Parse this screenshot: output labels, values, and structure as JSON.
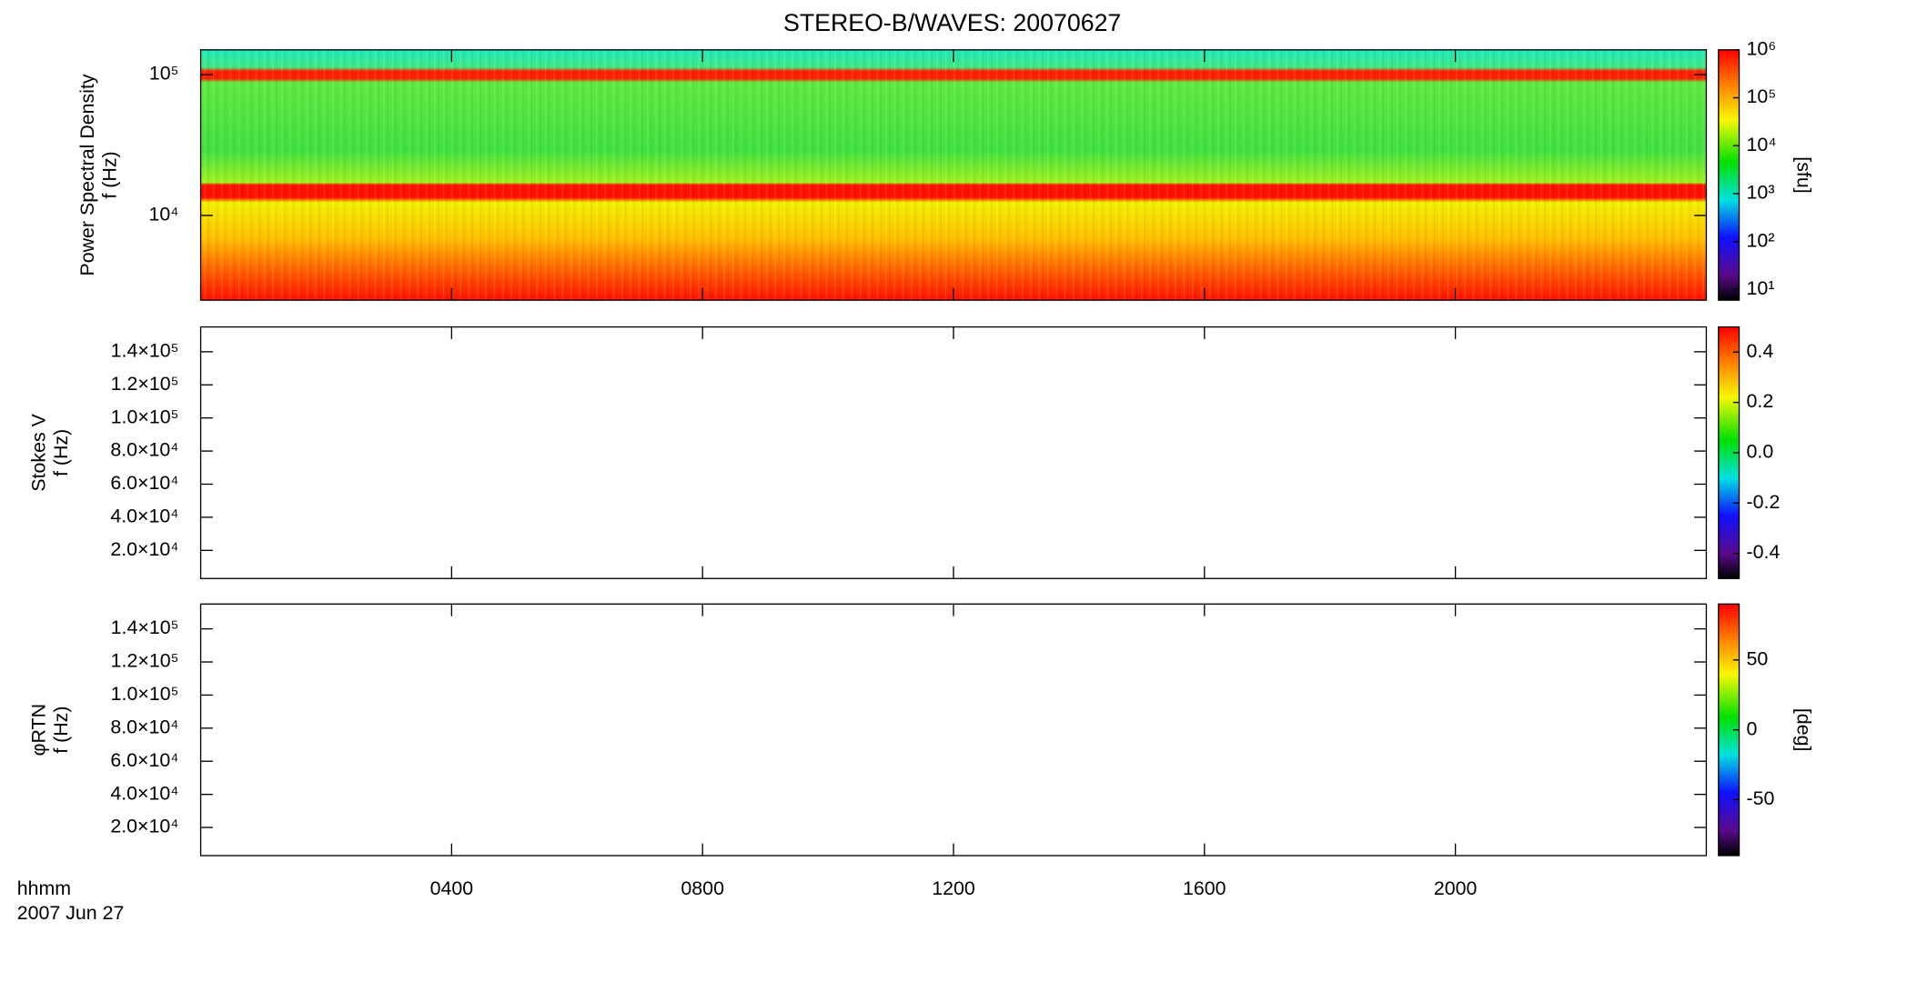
{
  "chart_data": [
    {
      "type": "spectrogram",
      "title": "STEREO-B/WAVES: 20070627",
      "y_label": [
        "Power Spectral Density",
        "f (Hz)"
      ],
      "log_y": true,
      "ylim": [
        2500,
        150000
      ],
      "yticks": [
        {
          "value": 10000,
          "label": "10⁴"
        },
        {
          "value": 100000,
          "label": "10⁵"
        }
      ],
      "xlim": [
        0,
        24
      ],
      "xticks": [
        {
          "value": 4,
          "label": "0400"
        },
        {
          "value": 8,
          "label": "0800"
        },
        {
          "value": 12,
          "label": "1200"
        },
        {
          "value": 16,
          "label": "1600"
        },
        {
          "value": 20,
          "label": "2000"
        }
      ],
      "colorbar": {
        "label": "[sfu]",
        "log": true,
        "lim": [
          6,
          1000000
        ],
        "ticks": [
          {
            "value": 10,
            "label": "10¹"
          },
          {
            "value": 100,
            "label": "10²"
          },
          {
            "value": 1000,
            "label": "10³"
          },
          {
            "value": 10000,
            "label": "10⁴"
          },
          {
            "value": 100000,
            "label": "10⁵"
          },
          {
            "value": 1000000,
            "label": "10⁶"
          }
        ]
      }
    },
    {
      "type": "spectrogram",
      "y_label": [
        "Stokes V",
        "f (Hz)"
      ],
      "log_y": false,
      "ylim": [
        3000,
        155000
      ],
      "yticks": [
        {
          "value": 20000,
          "label": "2.0×10⁴"
        },
        {
          "value": 40000,
          "label": "4.0×10⁴"
        },
        {
          "value": 60000,
          "label": "6.0×10⁴"
        },
        {
          "value": 80000,
          "label": "8.0×10⁴"
        },
        {
          "value": 100000,
          "label": "1.0×10⁵"
        },
        {
          "value": 120000,
          "label": "1.2×10⁵"
        },
        {
          "value": 140000,
          "label": "1.4×10⁵"
        }
      ],
      "xlim": [
        0,
        24
      ],
      "colorbar": {
        "log": false,
        "lim": [
          -0.5,
          0.5
        ],
        "ticks": [
          -0.4,
          -0.2,
          {
            "value": 0,
            "label": "0.0"
          },
          0.2,
          0.4
        ]
      }
    },
    {
      "type": "spectrogram",
      "y_label": [
        "φRTN",
        "f (Hz)"
      ],
      "log_y": false,
      "ylim": [
        3000,
        155000
      ],
      "yticks": [
        {
          "value": 20000,
          "label": "2.0×10⁴"
        },
        {
          "value": 40000,
          "label": "4.0×10⁴"
        },
        {
          "value": 60000,
          "label": "6.0×10⁴"
        },
        {
          "value": 80000,
          "label": "8.0×10⁴"
        },
        {
          "value": 100000,
          "label": "1.0×10⁵"
        },
        {
          "value": 120000,
          "label": "1.2×10⁵"
        },
        {
          "value": 140000,
          "label": "1.4×10⁵"
        }
      ],
      "xlim": [
        0,
        24
      ],
      "x_label": [
        "hhmm",
        "2007 Jun 27"
      ],
      "colorbar": {
        "label": "[deg]",
        "log": false,
        "lim": [
          -90,
          90
        ],
        "ticks": [
          -50,
          0,
          50
        ]
      }
    }
  ]
}
